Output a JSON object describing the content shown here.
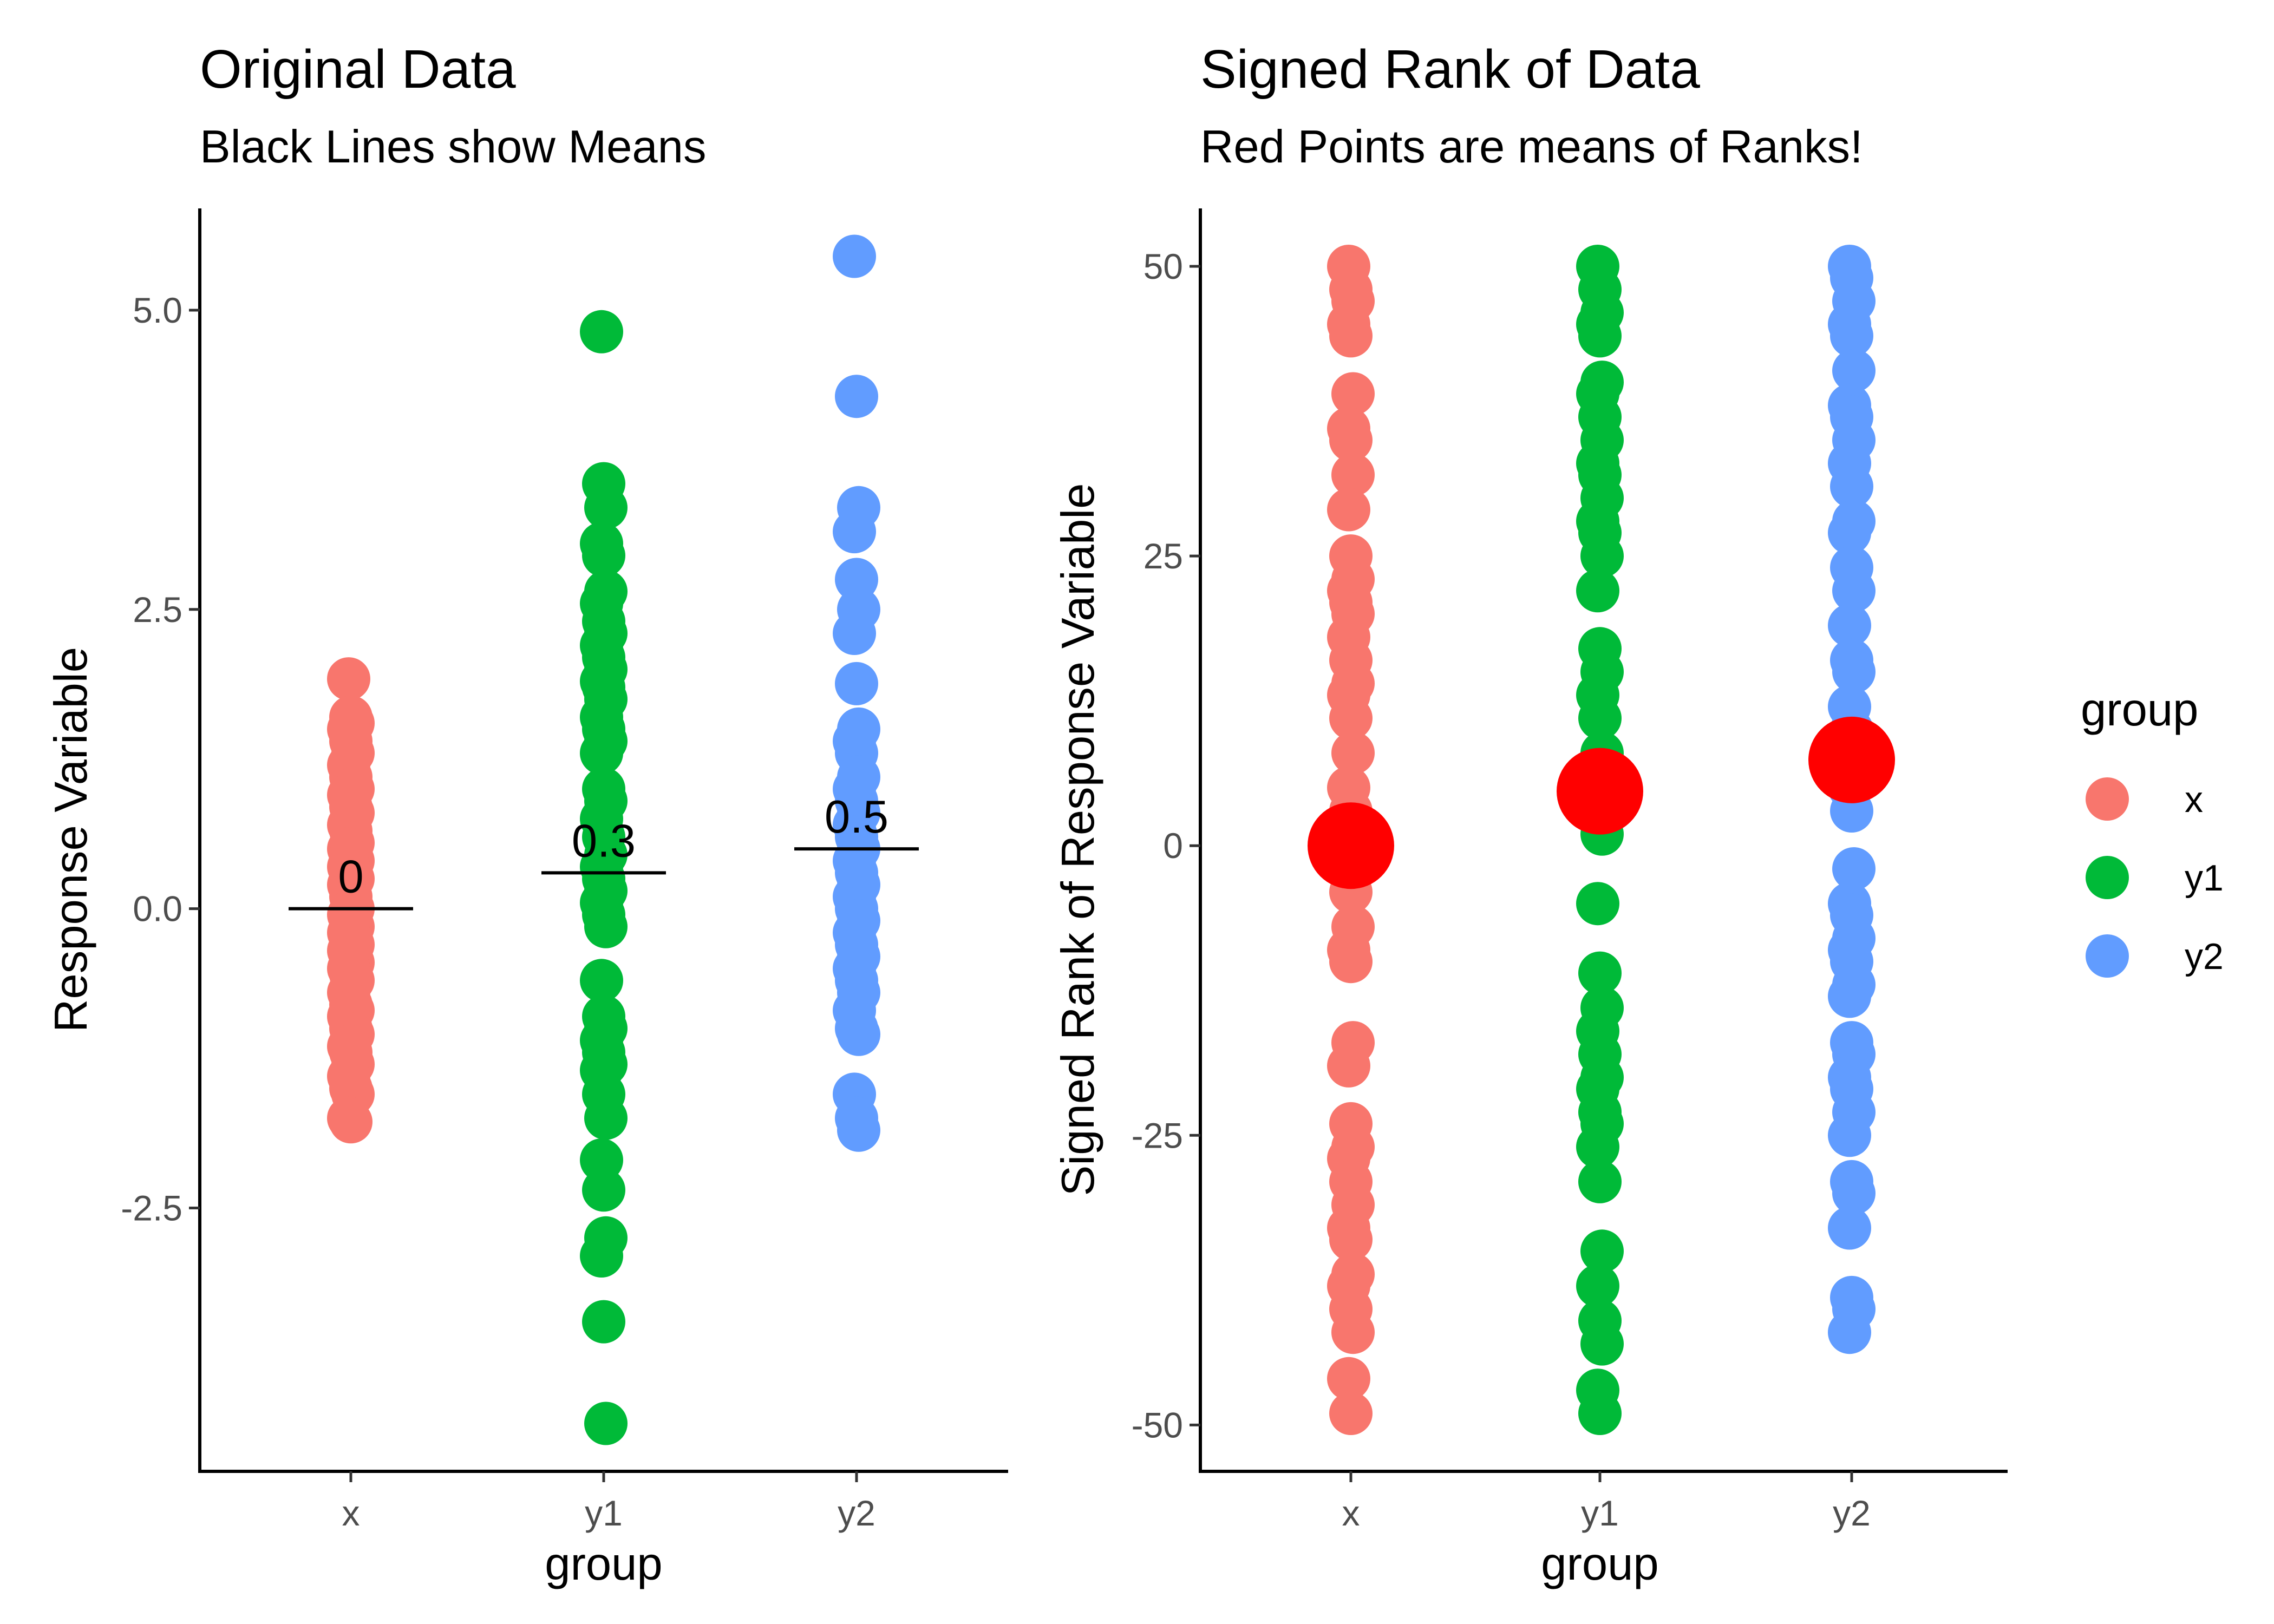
{
  "chart_data": [
    {
      "type": "scatter",
      "title": "Original Data",
      "subtitle": "Black Lines show Means",
      "xlabel": "group",
      "ylabel": "Response Variable",
      "categories": [
        "x",
        "y1",
        "y2"
      ],
      "ylim": [
        -4.7,
        5.85
      ],
      "yticks": [
        -2.5,
        0.0,
        2.5,
        5.0
      ],
      "ytick_labels": [
        "-2.5",
        "0.0",
        "2.5",
        "5.0"
      ],
      "grid": false,
      "series": [
        {
          "name": "x",
          "color": "#F8766D",
          "values": [
            1.92,
            1.6,
            1.55,
            1.5,
            1.4,
            1.3,
            1.2,
            1.1,
            1.0,
            0.95,
            0.85,
            0.8,
            0.7,
            0.65,
            0.55,
            0.5,
            0.45,
            0.4,
            0.35,
            0.3,
            0.25,
            0.2,
            0.1,
            0.0,
            -0.05,
            -0.1,
            -0.15,
            -0.2,
            -0.25,
            -0.3,
            -0.35,
            -0.4,
            -0.45,
            -0.5,
            -0.55,
            -0.6,
            -0.7,
            -0.8,
            -0.85,
            -0.9,
            -1.0,
            -1.05,
            -1.15,
            -1.2,
            -1.3,
            -1.4,
            -1.5,
            -1.55,
            -1.75,
            -1.78
          ]
        },
        {
          "name": "y1",
          "color": "#00BA38",
          "values": [
            4.82,
            3.55,
            3.35,
            3.05,
            2.95,
            2.65,
            2.55,
            2.4,
            2.3,
            2.2,
            2.1,
            2.0,
            1.9,
            1.85,
            1.75,
            1.6,
            1.5,
            1.4,
            1.3,
            1.0,
            0.9,
            0.75,
            0.6,
            0.45,
            0.35,
            0.25,
            0.15,
            0.05,
            -0.05,
            -0.15,
            -0.6,
            -0.9,
            -1.0,
            -1.1,
            -1.2,
            -1.3,
            -1.35,
            -1.55,
            -1.75,
            -2.1,
            -2.35,
            -2.75,
            -2.9,
            -3.45,
            -4.3
          ]
        },
        {
          "name": "y2",
          "color": "#619CFF",
          "values": [
            5.45,
            4.28,
            3.35,
            3.15,
            2.75,
            2.5,
            2.3,
            1.88,
            1.5,
            1.4,
            1.3,
            1.1,
            1.0,
            0.9,
            0.8,
            0.7,
            0.6,
            0.5,
            0.4,
            0.3,
            0.2,
            0.1,
            0.0,
            -0.1,
            -0.2,
            -0.3,
            -0.4,
            -0.5,
            -0.6,
            -0.7,
            -0.85,
            -1.0,
            -1.05,
            -1.55,
            -1.75,
            -1.85
          ]
        }
      ],
      "means": [
        {
          "group": "x",
          "value": 0.0,
          "label": "0"
        },
        {
          "group": "y1",
          "value": 0.3,
          "label": "0.3"
        },
        {
          "group": "y2",
          "value": 0.5,
          "label": "0.5"
        }
      ]
    },
    {
      "type": "scatter",
      "title": "Signed Rank of Data",
      "subtitle": "Red Points are means of Ranks!",
      "xlabel": "group",
      "ylabel": "Signed Rank of Response Variable",
      "categories": [
        "x",
        "y1",
        "y2"
      ],
      "ylim": [
        -54,
        55
      ],
      "yticks": [
        -50,
        -25,
        0,
        25,
        50
      ],
      "ytick_labels": [
        "-50",
        "-25",
        "0",
        "25",
        "50"
      ],
      "grid": false,
      "series": [
        {
          "name": "x",
          "color": "#F8766D",
          "values": [
            50,
            48,
            47,
            45,
            44,
            39,
            36,
            35,
            32,
            29,
            25,
            23,
            22,
            21,
            20,
            18,
            16,
            14,
            13,
            11,
            8,
            5,
            3,
            1,
            -1,
            -4,
            -7,
            -9,
            -10,
            -17,
            -19,
            -24,
            -26,
            -27,
            -29,
            -31,
            -33,
            -34,
            -37,
            -38,
            -40,
            -42,
            -46,
            -49
          ]
        },
        {
          "name": "y1",
          "color": "#00BA38",
          "values": [
            50,
            48,
            46,
            45,
            44,
            40,
            39,
            37,
            35,
            33,
            32,
            30,
            28,
            27,
            25,
            22,
            17,
            15,
            13,
            11,
            8,
            6,
            4,
            1,
            -5,
            -11,
            -14,
            -16,
            -18,
            -20,
            -21,
            -23,
            -24,
            -26,
            -29,
            -35,
            -38,
            -41,
            -43,
            -47,
            -49
          ]
        },
        {
          "name": "y2",
          "color": "#619CFF",
          "values": [
            50,
            49,
            47,
            45,
            44,
            41,
            38,
            37,
            35,
            33,
            31,
            28,
            27,
            24,
            22,
            19,
            16,
            15,
            12,
            10,
            8,
            5,
            3,
            -2,
            -5,
            -6,
            -8,
            -9,
            -10,
            -12,
            -13,
            -17,
            -18,
            -20,
            -21,
            -23,
            -25,
            -29,
            -30,
            -33,
            -39,
            -40,
            -42
          ]
        }
      ],
      "means": [
        {
          "group": "x",
          "value": 0.0
        },
        {
          "group": "y1",
          "value": 4.7
        },
        {
          "group": "y2",
          "value": 7.4
        }
      ],
      "mean_color": "#FF0000"
    }
  ],
  "legend": {
    "title": "group",
    "placement": "right",
    "items": [
      {
        "label": "x",
        "color": "#F8766D"
      },
      {
        "label": "y1",
        "color": "#00BA38"
      },
      {
        "label": "y2",
        "color": "#619CFF"
      }
    ]
  }
}
